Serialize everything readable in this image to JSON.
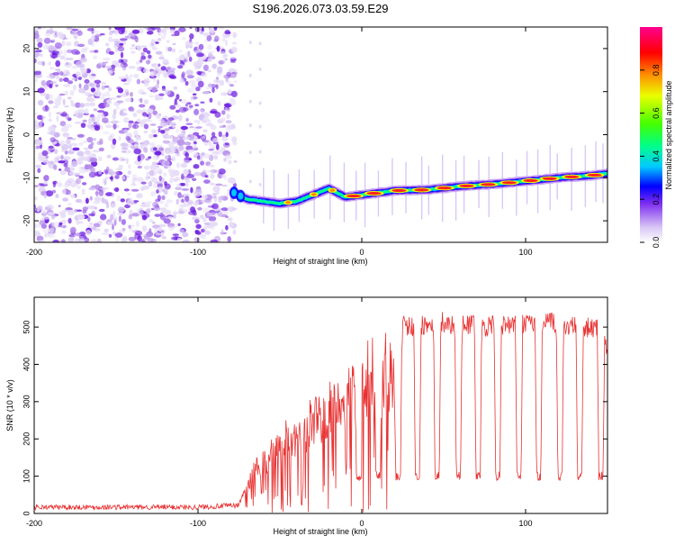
{
  "title": "S196.2026.073.03.59.E29",
  "chart_data": [
    {
      "type": "heatmap",
      "xlabel": "Height of straight line (km)",
      "ylabel": "Frequency (Hz)",
      "xlim": [
        -200,
        150
      ],
      "ylim": [
        -25,
        25
      ],
      "x_ticks": [
        -200,
        -100,
        0,
        100
      ],
      "y_ticks": [
        -20,
        -10,
        0,
        10,
        20
      ],
      "colorbar": {
        "label": "Normalized spectral amplitude",
        "range": [
          0,
          1
        ],
        "ticks": [
          0.0,
          0.2,
          0.4,
          0.6,
          0.8
        ]
      },
      "signal_track": {
        "description_x": [
          -78,
          -70,
          -60,
          -50,
          -40,
          -30,
          -20,
          -15,
          -10,
          0,
          20,
          40,
          60,
          80,
          100,
          120,
          140,
          150
        ],
        "frequency_hz": [
          -13.5,
          -15,
          -15.5,
          -16,
          -15.5,
          -14,
          -12.5,
          -13.5,
          -14.5,
          -14,
          -13,
          -12.8,
          -12,
          -11.5,
          -10.8,
          -10,
          -9.5,
          -9
        ]
      },
      "noise_region_x": [
        -200,
        -77
      ]
    },
    {
      "type": "line",
      "xlabel": "Height of straight line (km)",
      "ylabel": "SNR (10 * v/v)",
      "xlim": [
        -200,
        150
      ],
      "ylim": [
        0,
        580
      ],
      "x_ticks": [
        -200,
        -100,
        0,
        100
      ],
      "y_ticks": [
        0,
        100,
        200,
        300,
        400,
        500
      ],
      "series": [
        {
          "name": "SNR",
          "color": "#e83232",
          "x": [
            -200,
            -150,
            -100,
            -75,
            -65,
            -55,
            -45,
            -35,
            -25,
            -15,
            -5,
            5,
            15,
            25,
            35,
            45,
            55,
            65,
            75,
            85,
            95,
            105,
            115,
            125,
            135,
            145,
            150
          ],
          "y": [
            20,
            20,
            20,
            25,
            150,
            200,
            260,
            290,
            340,
            390,
            440,
            470,
            490,
            505,
            505,
            520,
            510,
            510,
            505,
            505,
            510,
            510,
            515,
            505,
            505,
            495,
            430
          ],
          "dropouts_x": [
            -2,
            10,
            22,
            34,
            46,
            59,
            71,
            83,
            96,
            108,
            121,
            133,
            146
          ],
          "dropout_level": 100
        }
      ]
    }
  ]
}
